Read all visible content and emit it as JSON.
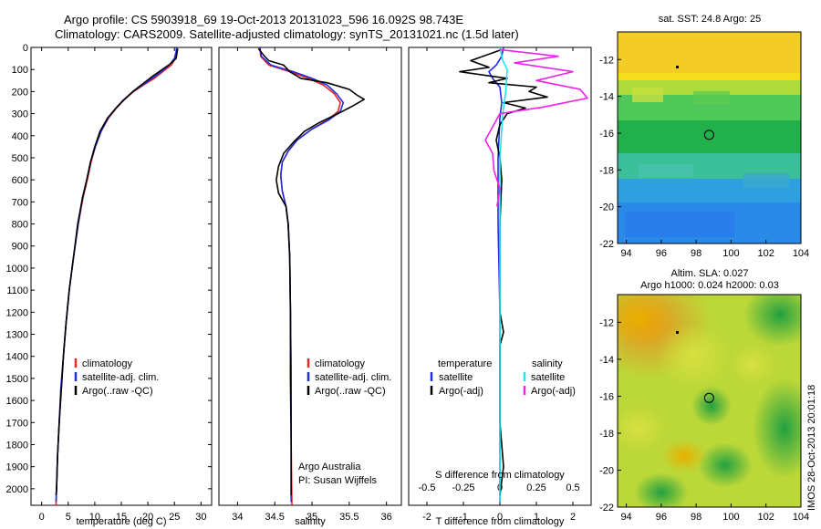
{
  "header": {
    "line1": "Argo profile: CS 5903918_69 19-Oct-2013 20131023_596 16.092S 98.743E",
    "line2": "Climatology: CARS2009. Satellite-adjusted climatology: synTS_20131021.nc (1.5d later)"
  },
  "colors": {
    "climatology": "#ee2222",
    "satellite": "#1f2fe0",
    "argo": "#000000",
    "salinity_sat": "#22e5ee",
    "salinity_argo": "#ee22ee"
  },
  "chart_data": [
    {
      "type": "line",
      "name": "temperature-profile",
      "xlabel": "temperature (deg C)",
      "xlim": [
        -2,
        32
      ],
      "xticks": [
        0,
        5,
        10,
        15,
        20,
        25,
        30
      ],
      "ylim": [
        0,
        2075
      ],
      "yticks": [
        0,
        100,
        200,
        300,
        400,
        500,
        600,
        700,
        800,
        900,
        1000,
        1100,
        1200,
        1300,
        1400,
        1500,
        1600,
        1700,
        1800,
        1900,
        2000
      ],
      "legend": [
        "climatology",
        "satellite-adj. clim.",
        "Argo(..raw -QC)"
      ],
      "series": [
        {
          "name": "climatology",
          "color": "#ee2222",
          "points": [
            [
              25.5,
              0
            ],
            [
              25.4,
              20
            ],
            [
              25.2,
              50
            ],
            [
              24.4,
              80
            ],
            [
              22.8,
              110
            ],
            [
              21.2,
              140
            ],
            [
              19.2,
              170
            ],
            [
              17.3,
              200
            ],
            [
              15.4,
              240
            ],
            [
              13.9,
              280
            ],
            [
              12.6,
              320
            ],
            [
              11.2,
              380
            ],
            [
              10.1,
              450
            ],
            [
              9.3,
              520
            ],
            [
              8.6,
              600
            ],
            [
              7.8,
              680
            ],
            [
              6.9,
              800
            ],
            [
              6.0,
              950
            ],
            [
              5.2,
              1100
            ],
            [
              4.6,
              1250
            ],
            [
              4.1,
              1400
            ],
            [
              3.7,
              1550
            ],
            [
              3.3,
              1700
            ],
            [
              3.0,
              1850
            ],
            [
              2.8,
              2000
            ],
            [
              2.7,
              2075
            ]
          ]
        },
        {
          "name": "satellite-adj. clim.",
          "color": "#1f2fe0",
          "points": [
            [
              25.4,
              0
            ],
            [
              25.3,
              20
            ],
            [
              25.0,
              50
            ],
            [
              24.0,
              80
            ],
            [
              22.5,
              110
            ],
            [
              20.8,
              140
            ],
            [
              19.0,
              170
            ],
            [
              17.2,
              200
            ],
            [
              15.3,
              240
            ],
            [
              13.8,
              280
            ],
            [
              12.5,
              320
            ],
            [
              11.2,
              380
            ],
            [
              10.1,
              450
            ],
            [
              9.2,
              520
            ],
            [
              8.5,
              600
            ],
            [
              7.7,
              680
            ],
            [
              6.9,
              800
            ],
            [
              6.0,
              950
            ],
            [
              5.2,
              1100
            ],
            [
              4.6,
              1250
            ],
            [
              4.1,
              1400
            ],
            [
              3.6,
              1550
            ],
            [
              3.3,
              1700
            ],
            [
              3.0,
              1850
            ],
            [
              2.8,
              2000
            ],
            [
              2.7,
              2060
            ]
          ]
        },
        {
          "name": "Argo(..raw -QC)",
          "color": "#000000",
          "points": [
            [
              25.6,
              5
            ],
            [
              25.5,
              25
            ],
            [
              25.3,
              50
            ],
            [
              24.2,
              75
            ],
            [
              22.4,
              105
            ],
            [
              20.9,
              130
            ],
            [
              19.3,
              160
            ],
            [
              17.4,
              195
            ],
            [
              15.6,
              235
            ],
            [
              14.0,
              275
            ],
            [
              12.4,
              320
            ],
            [
              11.0,
              380
            ],
            [
              10.0,
              450
            ],
            [
              9.2,
              520
            ],
            [
              8.5,
              600
            ],
            [
              7.7,
              680
            ],
            [
              6.8,
              800
            ],
            [
              6.0,
              950
            ],
            [
              5.2,
              1100
            ],
            [
              4.6,
              1250
            ],
            [
              4.1,
              1400
            ],
            [
              3.7,
              1550
            ],
            [
              3.3,
              1700
            ],
            [
              3.0,
              1850
            ],
            [
              2.8,
              2000
            ],
            [
              2.7,
              2030
            ]
          ]
        }
      ]
    },
    {
      "type": "line",
      "name": "salinity-profile",
      "xlabel": "salinity",
      "xlim": [
        33.75,
        36.2
      ],
      "xticks": [
        34,
        34.5,
        35,
        35.5,
        36
      ],
      "ylim": [
        0,
        2075
      ],
      "legend": [
        "climatology",
        "satellite-adj. clim.",
        "Argo(..raw -QC)"
      ],
      "annotation": [
        "Argo Australia",
        "PI: Susan Wijffels"
      ],
      "series": [
        {
          "name": "climatology",
          "color": "#ee2222",
          "points": [
            [
              34.3,
              0
            ],
            [
              34.31,
              40
            ],
            [
              34.42,
              80
            ],
            [
              34.7,
              110
            ],
            [
              34.95,
              140
            ],
            [
              35.15,
              170
            ],
            [
              35.3,
              210
            ],
            [
              35.38,
              250
            ],
            [
              35.35,
              290
            ],
            [
              35.2,
              330
            ],
            [
              35.0,
              370
            ],
            [
              34.8,
              420
            ],
            [
              34.68,
              470
            ],
            [
              34.6,
              520
            ],
            [
              34.58,
              580
            ],
            [
              34.6,
              650
            ],
            [
              34.65,
              720
            ],
            [
              34.68,
              800
            ],
            [
              34.7,
              950
            ],
            [
              34.71,
              1200
            ],
            [
              34.72,
              1500
            ],
            [
              34.72,
              1800
            ],
            [
              34.73,
              2075
            ]
          ]
        },
        {
          "name": "satellite-adj. clim.",
          "color": "#1f2fe0",
          "points": [
            [
              34.3,
              0
            ],
            [
              34.32,
              40
            ],
            [
              34.45,
              80
            ],
            [
              34.75,
              110
            ],
            [
              35.0,
              140
            ],
            [
              35.2,
              170
            ],
            [
              35.33,
              210
            ],
            [
              35.42,
              250
            ],
            [
              35.38,
              290
            ],
            [
              35.22,
              330
            ],
            [
              35.0,
              370
            ],
            [
              34.8,
              420
            ],
            [
              34.68,
              470
            ],
            [
              34.6,
              520
            ],
            [
              34.58,
              580
            ],
            [
              34.6,
              650
            ],
            [
              34.65,
              720
            ],
            [
              34.68,
              800
            ],
            [
              34.7,
              950
            ],
            [
              34.71,
              1200
            ],
            [
              34.72,
              1500
            ],
            [
              34.72,
              1800
            ],
            [
              34.72,
              2060
            ]
          ]
        },
        {
          "name": "Argo(..raw -QC)",
          "color": "#000000",
          "points": [
            [
              34.28,
              5
            ],
            [
              34.35,
              35
            ],
            [
              34.42,
              60
            ],
            [
              34.62,
              80
            ],
            [
              34.7,
              110
            ],
            [
              34.85,
              140
            ],
            [
              35.2,
              160
            ],
            [
              35.5,
              190
            ],
            [
              35.6,
              215
            ],
            [
              35.7,
              235
            ],
            [
              35.55,
              265
            ],
            [
              35.35,
              300
            ],
            [
              35.1,
              340
            ],
            [
              34.9,
              380
            ],
            [
              34.75,
              430
            ],
            [
              34.62,
              480
            ],
            [
              34.55,
              540
            ],
            [
              34.52,
              600
            ],
            [
              34.55,
              660
            ],
            [
              34.65,
              720
            ],
            [
              34.68,
              800
            ],
            [
              34.7,
              950
            ],
            [
              34.71,
              1200
            ],
            [
              34.71,
              1500
            ],
            [
              34.72,
              1800
            ],
            [
              34.72,
              2030
            ]
          ]
        }
      ]
    },
    {
      "type": "line",
      "name": "difference-profile",
      "xlabel": "T difference from climatology",
      "x2label": "S difference from climatology",
      "xlim": [
        -2.5,
        2.5
      ],
      "xticks": [
        -2,
        -1,
        0,
        1,
        2
      ],
      "x2lim": [
        -0.625,
        0.625
      ],
      "x2ticks": [
        -0.5,
        -0.25,
        0,
        0.25,
        0.5
      ],
      "ylim": [
        0,
        2075
      ],
      "legend": {
        "temperature": [
          "satellite",
          "Argo(-adj)"
        ],
        "salinity": [
          "satellite",
          "Argo(-adj)"
        ]
      },
      "legend_headers": [
        "temperature",
        "salinity"
      ],
      "series": [
        {
          "name": "temperature satellite",
          "color": "#1f2fe0",
          "points": [
            [
              0.1,
              0
            ],
            [
              0.05,
              40
            ],
            [
              -0.1,
              80
            ],
            [
              -0.3,
              110
            ],
            [
              -0.2,
              140
            ],
            [
              0.0,
              180
            ],
            [
              0.05,
              250
            ],
            [
              0.0,
              320
            ],
            [
              -0.05,
              500
            ],
            [
              -0.05,
              800
            ],
            [
              0.0,
              1200
            ],
            [
              0.0,
              1600
            ],
            [
              0.0,
              2060
            ]
          ]
        },
        {
          "name": "temperature Argo(-adj)",
          "color": "#000000",
          "points": [
            [
              0.05,
              10
            ],
            [
              -0.8,
              60
            ],
            [
              -0.3,
              90
            ],
            [
              -1.1,
              110
            ],
            [
              0.2,
              140
            ],
            [
              -0.3,
              160
            ],
            [
              1.0,
              180
            ],
            [
              0.8,
              200
            ],
            [
              1.3,
              225
            ],
            [
              0.1,
              250
            ],
            [
              0.7,
              275
            ],
            [
              0.2,
              300
            ],
            [
              0.0,
              350
            ],
            [
              -0.1,
              420
            ],
            [
              0.0,
              500
            ],
            [
              0.05,
              600
            ],
            [
              0.0,
              800
            ],
            [
              0.0,
              1200
            ],
            [
              0.1,
              1290
            ],
            [
              0.0,
              1350
            ],
            [
              0.0,
              1700
            ],
            [
              0.1,
              1900
            ],
            [
              0.0,
              2030
            ]
          ]
        },
        {
          "name": "salinity satellite",
          "color": "#22e5ee",
          "points": [
            [
              0.0,
              0
            ],
            [
              0.02,
              60
            ],
            [
              0.05,
              100
            ],
            [
              0.04,
              200
            ],
            [
              0.02,
              300
            ],
            [
              0.0,
              500
            ],
            [
              0.0,
              1000
            ],
            [
              0.0,
              1500
            ],
            [
              0.0,
              2060
            ]
          ]
        },
        {
          "name": "salinity Argo(-adj)",
          "color": "#ee22ee",
          "points": [
            [
              0.0,
              10
            ],
            [
              0.4,
              40
            ],
            [
              0.1,
              70
            ],
            [
              0.5,
              110
            ],
            [
              0.25,
              150
            ],
            [
              0.55,
              190
            ],
            [
              0.6,
              230
            ],
            [
              0.3,
              270
            ],
            [
              0.0,
              300
            ],
            [
              -0.05,
              360
            ],
            [
              -0.1,
              420
            ],
            [
              -0.05,
              480
            ],
            [
              -0.04,
              560
            ],
            [
              0.0,
              640
            ],
            [
              -0.02,
              720
            ]
          ]
        }
      ]
    },
    {
      "type": "heatmap",
      "name": "sst-map",
      "title": "sat. SST: 24.8 Argo: 25",
      "xlim": [
        93.5,
        104
      ],
      "xticks": [
        94,
        96,
        98,
        100,
        102,
        104
      ],
      "ylim": [
        -22,
        -10.5
      ],
      "yticks": [
        -12,
        -14,
        -16,
        -18,
        -20,
        -22
      ],
      "argo_position": [
        98.743,
        -16.092
      ]
    },
    {
      "type": "heatmap",
      "name": "sla-map",
      "title": [
        "Altim. SLA: 0.027",
        "Argo h1000: 0.024 h2000: 0.03"
      ],
      "xlim": [
        93.5,
        104
      ],
      "xticks": [
        94,
        96,
        98,
        100,
        102,
        104
      ],
      "ylim": [
        -22,
        -10.5
      ],
      "yticks": [
        -12,
        -14,
        -16,
        -18,
        -20,
        -22
      ],
      "argo_position": [
        98.743,
        -16.092
      ]
    }
  ],
  "footer": {
    "stamp": "IMOS 28-Oct-2013 20:01:18"
  }
}
